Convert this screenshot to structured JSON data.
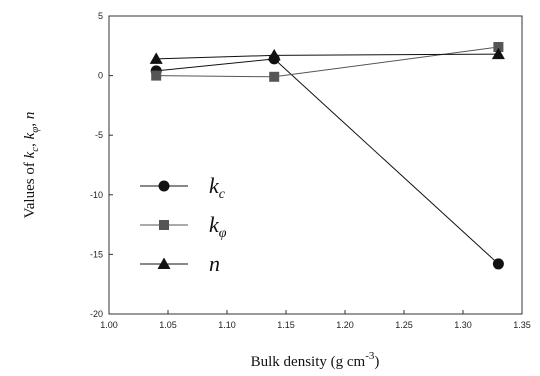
{
  "chart_data": {
    "type": "line",
    "xlabel": "Bulk density (g cm",
    "xlabel_sup": "-3",
    "xlabel_end": ")",
    "ylabel_prefix": "Values of ",
    "ylabel_parts": [
      {
        "base": "k",
        "sub": "c"
      },
      {
        "base": "k",
        "sub": "φ"
      },
      {
        "base": "n",
        "sub": ""
      }
    ],
    "xlim": [
      1.0,
      1.35
    ],
    "ylim": [
      -20,
      5
    ],
    "xticks": [
      "1.00",
      "1.05",
      "1.10",
      "1.15",
      "1.20",
      "1.25",
      "1.30",
      "1.35"
    ],
    "yticks": [
      "5",
      "0",
      "-5",
      "-10",
      "-15",
      "-20"
    ],
    "x": [
      1.04,
      1.14,
      1.33
    ],
    "series": [
      {
        "name_base": "k",
        "name_sub": "c",
        "marker": "circle",
        "color": "#111111",
        "values": [
          0.4,
          1.4,
          -15.8
        ]
      },
      {
        "name_base": "k",
        "name_sub": "φ",
        "marker": "square",
        "color": "#555555",
        "values": [
          0.0,
          -0.1,
          2.4
        ]
      },
      {
        "name_base": "n",
        "name_sub": "",
        "marker": "triangle",
        "color": "#111111",
        "values": [
          1.4,
          1.7,
          1.8
        ]
      }
    ],
    "legend_placement": "center-left",
    "grid": false
  }
}
